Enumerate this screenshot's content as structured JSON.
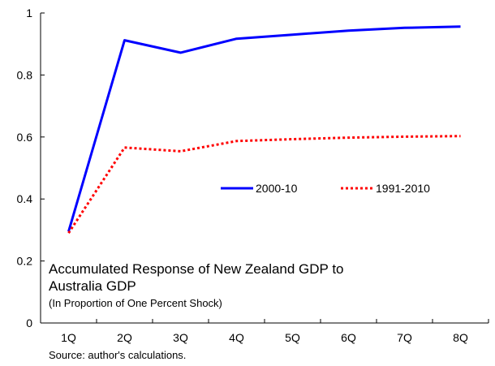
{
  "chart_data": {
    "type": "line",
    "categories": [
      "1Q",
      "2Q",
      "3Q",
      "4Q",
      "5Q",
      "6Q",
      "7Q",
      "8Q"
    ],
    "series": [
      {
        "name": "2000-10",
        "values": [
          0.295,
          0.912,
          0.872,
          0.917,
          0.93,
          0.943,
          0.952,
          0.956
        ],
        "color": "#0000ff",
        "style": "solid"
      },
      {
        "name": "1991-2010",
        "values": [
          0.29,
          0.566,
          0.554,
          0.587,
          0.593,
          0.598,
          0.601,
          0.603
        ],
        "color": "#ff0000",
        "style": "dotted"
      }
    ],
    "ylim": [
      0,
      1
    ],
    "yticks": [
      "0",
      "0.2",
      "0.4",
      "0.6",
      "0.8",
      "1"
    ],
    "grid": false,
    "legend_position": "center",
    "annotation": {
      "title_line1": "Accumulated Response of New Zealand GDP to",
      "title_line2": "Australia GDP",
      "subtitle": "(In Proportion of One Percent Shock)"
    },
    "source": "Source: author's calculations."
  }
}
